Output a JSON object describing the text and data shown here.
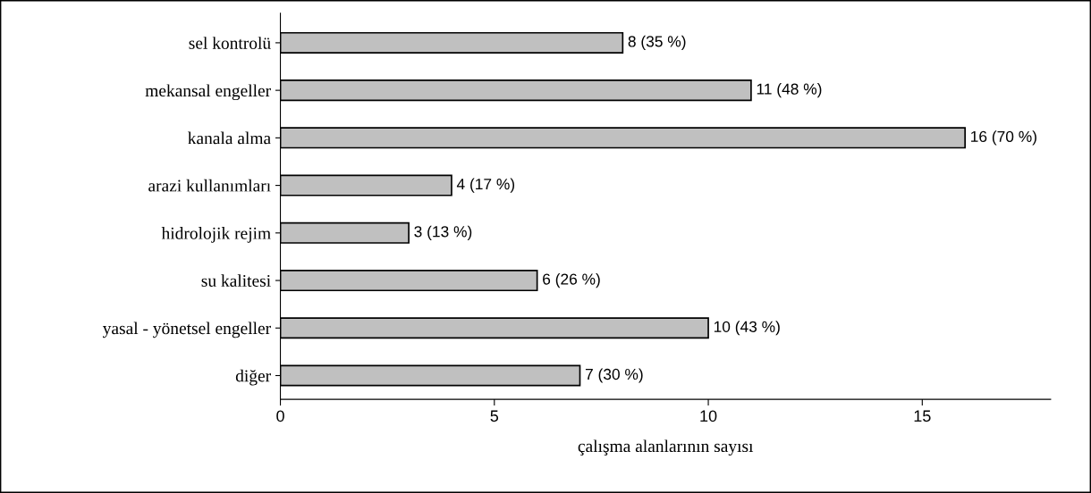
{
  "chart_data": {
    "type": "bar",
    "orientation": "horizontal",
    "xlabel": "çalışma alanlarının sayısı",
    "categories": [
      "sel kontrolü",
      "mekansal engeller",
      "kanala alma",
      "arazi kullanımları",
      "hidrolojik rejim",
      "su kalitesi",
      "yasal - yönetsel engeller",
      "diğer"
    ],
    "values": [
      8,
      11,
      16,
      4,
      3,
      6,
      10,
      7
    ],
    "value_labels": [
      "8 (35 %)",
      "11 (48 %)",
      "16 (70 %)",
      "4 (17 %)",
      "3 (13 %)",
      "6 (26 %)",
      "10 (43 %)",
      "7 (30 %)"
    ],
    "color": "#c0c0c0",
    "xlim": [
      0,
      18
    ],
    "xticks": [
      0,
      5,
      10,
      15
    ],
    "grid": false,
    "legend": false
  }
}
